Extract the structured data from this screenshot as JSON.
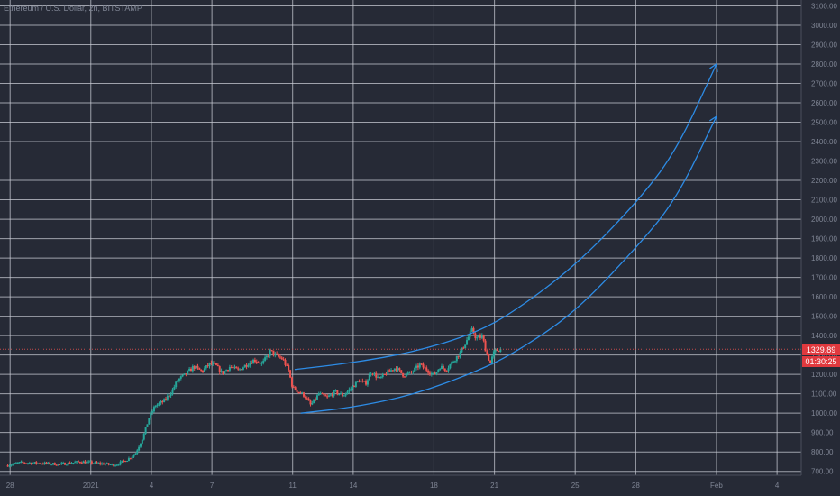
{
  "header": {
    "symbol_title": "Ethereum / U.S. Dollar, 2h, BITSTAMP"
  },
  "price_badge": {
    "last_price": "1329.89",
    "countdown": "01:30:25"
  },
  "colors": {
    "background": "#262a36",
    "grid": "#c8cbd4",
    "up_candle": "#26a69a",
    "down_candle": "#ef5350",
    "drawing": "#2d8ce6",
    "price_badge": "#e0393e",
    "axis_text": "#7f8594"
  },
  "chart_data": {
    "type": "candlestick",
    "ylim": [
      680,
      3130
    ],
    "y_ticks": [
      700,
      800,
      900,
      1000,
      1100,
      1200,
      1300,
      1400,
      1500,
      1600,
      1700,
      1800,
      1900,
      2000,
      2100,
      2200,
      2300,
      2400,
      2500,
      2600,
      2700,
      2800,
      2900,
      3000,
      3100
    ],
    "y_tick_labels": [
      "700.00",
      "800.00",
      "900.00",
      "1000.00",
      "1100.00",
      "1200.00",
      "1300.00",
      "1400.00",
      "1500.00",
      "1600.00",
      "1700.00",
      "1800.00",
      "1900.00",
      "2000.00",
      "2100.00",
      "2200.00",
      "2300.00",
      "2400.00",
      "2500.00",
      "2600.00",
      "2700.00",
      "2800.00",
      "2900.00",
      "3000.00",
      "3100.00"
    ],
    "x_ticks": [
      {
        "label": "28",
        "day": 0
      },
      {
        "label": "2021",
        "day": 4
      },
      {
        "label": "4",
        "day": 7
      },
      {
        "label": "7",
        "day": 10
      },
      {
        "label": "11",
        "day": 14
      },
      {
        "label": "14",
        "day": 17
      },
      {
        "label": "18",
        "day": 21
      },
      {
        "label": "21",
        "day": 24
      },
      {
        "label": "25",
        "day": 28
      },
      {
        "label": "28",
        "day": 31
      },
      {
        "label": "Feb",
        "day": 35
      },
      {
        "label": "4",
        "day": 38
      }
    ],
    "xlim_days": [
      -0.5,
      39.2
    ],
    "grid": true,
    "last_price": 1329.89,
    "price_path": [
      [
        -0.2,
        730
      ],
      [
        0.5,
        745
      ],
      [
        1.5,
        742
      ],
      [
        2.5,
        737
      ],
      [
        3.5,
        750
      ],
      [
        4.5,
        740
      ],
      [
        5.2,
        733
      ],
      [
        5.8,
        760
      ],
      [
        6.2,
        790
      ],
      [
        6.6,
        880
      ],
      [
        6.9,
        980
      ],
      [
        7.2,
        1040
      ],
      [
        7.6,
        1060
      ],
      [
        8.0,
        1110
      ],
      [
        8.3,
        1170
      ],
      [
        8.7,
        1200
      ],
      [
        9.1,
        1240
      ],
      [
        9.5,
        1215
      ],
      [
        9.9,
        1255
      ],
      [
        10.2,
        1245
      ],
      [
        10.5,
        1205
      ],
      [
        10.9,
        1240
      ],
      [
        11.3,
        1220
      ],
      [
        11.7,
        1250
      ],
      [
        12.1,
        1275
      ],
      [
        12.5,
        1255
      ],
      [
        12.9,
        1320
      ],
      [
        13.2,
        1295
      ],
      [
        13.5,
        1280
      ],
      [
        13.8,
        1220
      ],
      [
        14.0,
        1130
      ],
      [
        14.3,
        1110
      ],
      [
        14.6,
        1090
      ],
      [
        14.9,
        1040
      ],
      [
        15.3,
        1100
      ],
      [
        15.7,
        1080
      ],
      [
        16.1,
        1110
      ],
      [
        16.5,
        1090
      ],
      [
        16.9,
        1130
      ],
      [
        17.3,
        1170
      ],
      [
        17.6,
        1150
      ],
      [
        17.9,
        1215
      ],
      [
        18.3,
        1175
      ],
      [
        18.7,
        1210
      ],
      [
        19.1,
        1235
      ],
      [
        19.5,
        1195
      ],
      [
        19.9,
        1210
      ],
      [
        20.3,
        1250
      ],
      [
        20.7,
        1220
      ],
      [
        21.0,
        1195
      ],
      [
        21.3,
        1240
      ],
      [
        21.6,
        1225
      ],
      [
        22.0,
        1275
      ],
      [
        22.3,
        1310
      ],
      [
        22.6,
        1370
      ],
      [
        22.9,
        1430
      ],
      [
        23.1,
        1385
      ],
      [
        23.4,
        1395
      ],
      [
        23.6,
        1310
      ],
      [
        23.8,
        1260
      ],
      [
        24.0,
        1320
      ],
      [
        24.3,
        1330
      ]
    ]
  },
  "drawings": {
    "upper_curve": [
      [
        14.1,
        1225
      ],
      [
        17.0,
        1260
      ],
      [
        20.0,
        1315
      ],
      [
        23.0,
        1410
      ],
      [
        25.0,
        1525
      ],
      [
        28.0,
        1760
      ],
      [
        31.0,
        2080
      ],
      [
        33.0,
        2350
      ],
      [
        35.0,
        2800
      ]
    ],
    "lower_curve": [
      [
        14.4,
        1000
      ],
      [
        17.0,
        1030
      ],
      [
        20.0,
        1095
      ],
      [
        23.0,
        1210
      ],
      [
        25.0,
        1310
      ],
      [
        28.0,
        1520
      ],
      [
        31.0,
        1850
      ],
      [
        33.0,
        2100
      ],
      [
        35.0,
        2530
      ]
    ]
  }
}
